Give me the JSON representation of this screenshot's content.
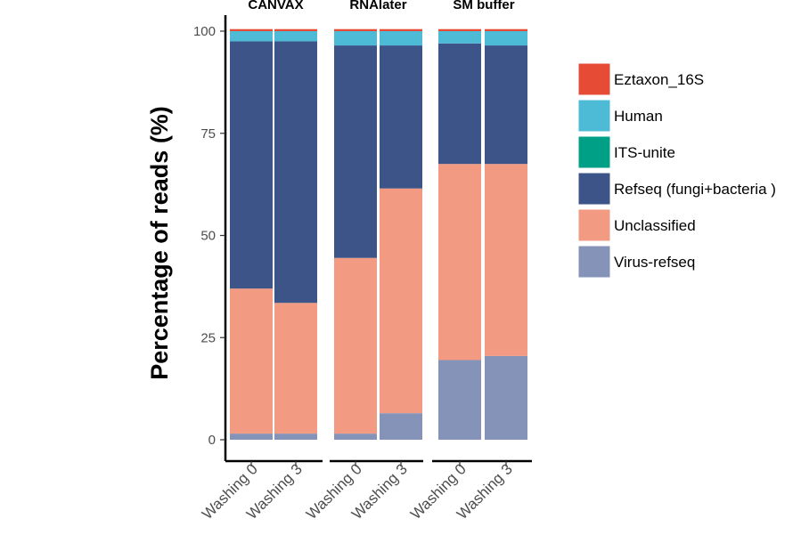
{
  "chart_data": {
    "type": "bar",
    "stacked": true,
    "ylabel": "Percentage of reads (%)",
    "ylim": [
      0,
      100
    ],
    "yticks": [
      0,
      25,
      50,
      75,
      100
    ],
    "grid": false,
    "legend_position": "right",
    "panels": [
      {
        "title": "CANVAX",
        "categories": [
          "Washing 0",
          "Washing 3"
        ]
      },
      {
        "title": "RNAlater",
        "categories": [
          "Washing 0",
          "Washing 3"
        ]
      },
      {
        "title": "SM buffer",
        "categories": [
          "Washing 0",
          "Washing 3"
        ]
      }
    ],
    "series": [
      {
        "name": "Virus-refseq",
        "color": "#8693B8",
        "values": [
          [
            1.5,
            1.5
          ],
          [
            1.5,
            6.5
          ],
          [
            19.5,
            20.5
          ]
        ]
      },
      {
        "name": "Unclassified",
        "color": "#F29B82",
        "values": [
          [
            35.5,
            32
          ],
          [
            43,
            55
          ],
          [
            48,
            47
          ]
        ]
      },
      {
        "name": "Refseq (fungi+bacteria )",
        "color": "#3C5488",
        "values": [
          [
            60.5,
            64
          ],
          [
            52,
            35
          ],
          [
            29.5,
            29
          ]
        ]
      },
      {
        "name": "ITS-unite",
        "color": "#00A087",
        "values": [
          [
            0,
            0
          ],
          [
            0,
            0
          ],
          [
            0,
            0
          ]
        ]
      },
      {
        "name": "Human",
        "color": "#4DBBD5",
        "values": [
          [
            2.5,
            2.5
          ],
          [
            3.5,
            3.5
          ],
          [
            3,
            3.5
          ]
        ]
      },
      {
        "name": "Eztaxon_16S",
        "color": "#E64B35",
        "values": [
          [
            0.5,
            0.5
          ],
          [
            0.5,
            0.5
          ],
          [
            0.5,
            0.5
          ]
        ]
      }
    ],
    "legend_order": [
      "Eztaxon_16S",
      "Human",
      "ITS-unite",
      "Refseq (fungi+bacteria )",
      "Unclassified",
      "Virus-refseq"
    ]
  }
}
